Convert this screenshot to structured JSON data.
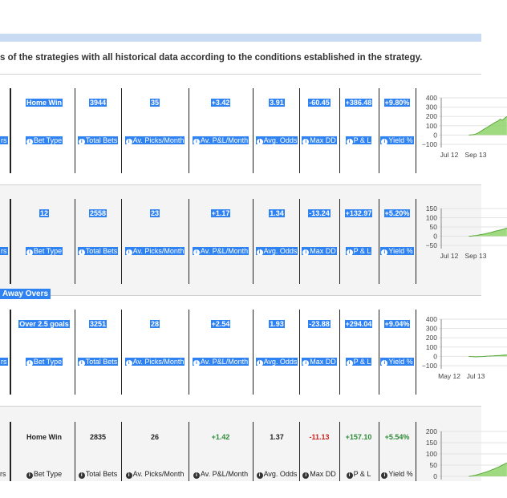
{
  "intro_text": "s of the strategies with all historical data according to the conditions established in the strategy.",
  "labels": {
    "left_edge": "rs",
    "bet_type": "Bet Type",
    "total_bets": "Total Bets",
    "av_picks": "Av. Picks/Month",
    "av_pl": "Av. P&L/Month",
    "avg_odds": "Avg. Odds",
    "max_dd": "Max DD",
    "pl": "P & L",
    "yield": "Yield %"
  },
  "cards": [
    {
      "selected": true,
      "title": "",
      "bet_type": "Home Win",
      "total_bets": "3944",
      "av_picks": "35",
      "av_pl": "+3.42",
      "avg_odds": "3.91",
      "max_dd": "-60.45",
      "pl": "+386.48",
      "yield": "+9.80%",
      "chart_data": {
        "type": "area",
        "y_ticks": [
          "400",
          "300",
          "200",
          "100",
          "0",
          "−100"
        ],
        "x_ticks": [
          "Jul 12",
          "Sep 13"
        ],
        "ylim": [
          -100,
          400
        ],
        "y": [
          0,
          2,
          5,
          10,
          20,
          35,
          50,
          65,
          80,
          95,
          110,
          125,
          140,
          150,
          170,
          160,
          180,
          200
        ]
      }
    },
    {
      "selected": true,
      "title": "",
      "bet_type": "12",
      "total_bets": "2558",
      "av_picks": "23",
      "av_pl": "+1.17",
      "avg_odds": "1.34",
      "max_dd": "-13.24",
      "pl": "+132.97",
      "yield": "+5.20%",
      "chart_data": {
        "type": "area",
        "y_ticks": [
          "150",
          "100",
          "50",
          "0",
          "−50"
        ],
        "x_ticks": [
          "Jul 12",
          "Sep 13"
        ],
        "ylim": [
          -50,
          150
        ],
        "y": [
          0,
          0,
          2,
          3,
          5,
          8,
          10,
          12,
          15,
          18,
          20,
          24,
          28,
          30,
          33,
          36,
          40,
          44
        ]
      }
    },
    {
      "selected": true,
      "title": "Away Overs",
      "bet_type": "Over 2.5 goals",
      "total_bets": "3251",
      "av_picks": "28",
      "av_pl": "+2.54",
      "avg_odds": "1.93",
      "max_dd": "-23.88",
      "pl": "+294.04",
      "yield": "+9.04%",
      "chart_data": {
        "type": "area",
        "y_ticks": [
          "400",
          "300",
          "200",
          "100",
          "0",
          "−100"
        ],
        "x_ticks": [
          "May 12",
          "Jul 13"
        ],
        "ylim": [
          -100,
          400
        ],
        "y": [
          0,
          -2,
          -3,
          -5,
          -4,
          -3,
          -2,
          0,
          2,
          3,
          5,
          6,
          8,
          9,
          10,
          12,
          14,
          15
        ]
      }
    },
    {
      "selected": false,
      "title": "",
      "bet_type": "Home Win",
      "total_bets": "2835",
      "av_picks": "26",
      "av_pl": "+1.42",
      "avg_odds": "1.37",
      "max_dd": "-11.13",
      "pl": "+157.10",
      "yield": "+5.54%",
      "chart_data": {
        "type": "area",
        "y_ticks": [
          "200",
          "150",
          "100",
          "50",
          "0"
        ],
        "x_ticks": [],
        "ylim": [
          0,
          200
        ],
        "y": [
          0,
          1,
          3,
          5,
          8,
          11,
          14,
          17,
          20,
          24,
          28,
          32,
          36,
          40,
          45,
          50,
          55,
          60
        ]
      }
    }
  ],
  "colors": {
    "selection": "#2f82f2",
    "positive": "#2e8a37",
    "negative": "#c8211e",
    "chart_fill": "#8fd46a",
    "chart_line": "#5aa83a"
  }
}
